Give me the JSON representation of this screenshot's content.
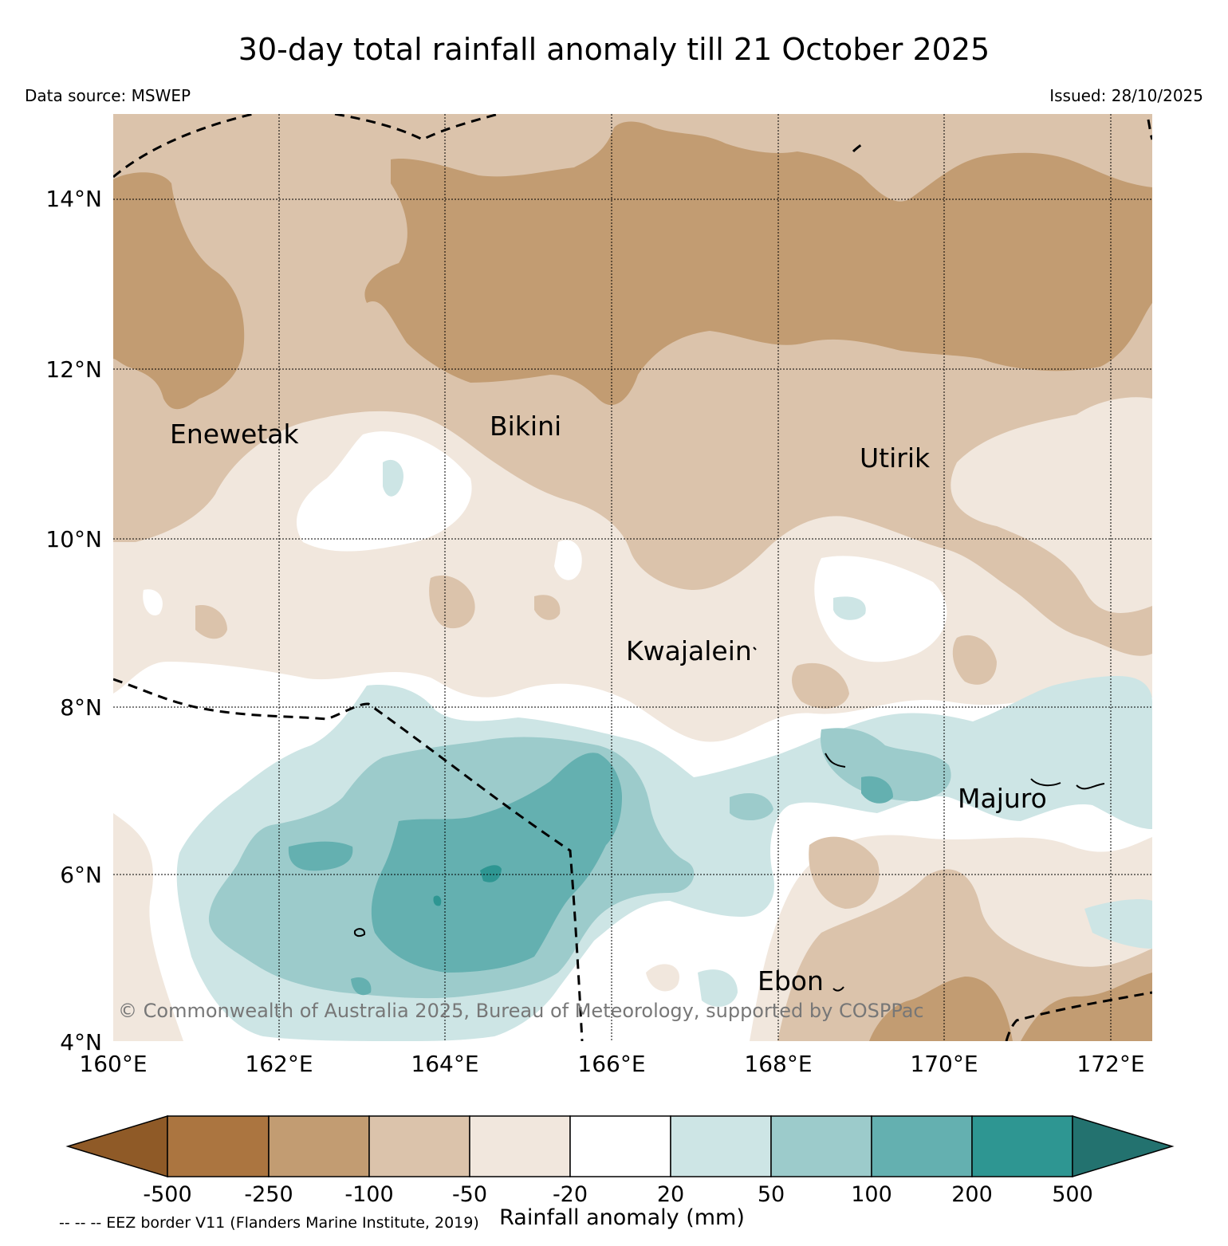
{
  "title": "30-day total rainfall anomaly till 21 October 2025",
  "data_source": "Data source: MSWEP",
  "issued": "Issued: 28/10/2025",
  "map": {
    "lon_range": [
      160,
      172.5
    ],
    "lat_range": [
      4,
      15
    ],
    "lat_ticks": [
      "4°N",
      "6°N",
      "8°N",
      "10°N",
      "12°N",
      "14°N"
    ],
    "lon_ticks": [
      "160°E",
      "162°E",
      "164°E",
      "166°E",
      "168°E",
      "170°E",
      "172°E"
    ],
    "places": [
      {
        "name": "Enewetak",
        "lon": 162.35,
        "lat": 11.35
      },
      {
        "name": "Bikini",
        "lon": 165.5,
        "lat": 11.5
      },
      {
        "name": "Utirik",
        "lon": 169.8,
        "lat": 11.2
      },
      {
        "name": "Kwajalein",
        "lon": 167.7,
        "lat": 8.7
      },
      {
        "name": "Majuro",
        "lon": 171.2,
        "lat": 7.1
      },
      {
        "name": "Ebon",
        "lon": 168.6,
        "lat": 4.6
      }
    ],
    "copyright": "© Commonwealth of Australia 2025, Bureau of Meteorology, supported by COSPPac"
  },
  "colorbar": {
    "title": "Rainfall anomaly (mm)",
    "levels": [
      "-500",
      "-250",
      "-100",
      "-50",
      "-20",
      "20",
      "50",
      "100",
      "200",
      "500"
    ],
    "colors": [
      "#8f5a27",
      "#ab7540",
      "#c29c72",
      "#dbc3ab",
      "#f1e7dd",
      "#ffffff",
      "#cde5e5",
      "#9ccbcb",
      "#64b0b0",
      "#2e9692",
      "#23726f"
    ]
  },
  "legend_note": "-- -- -- EEZ border V11 (Flanders Marine Institute, 2019)"
}
